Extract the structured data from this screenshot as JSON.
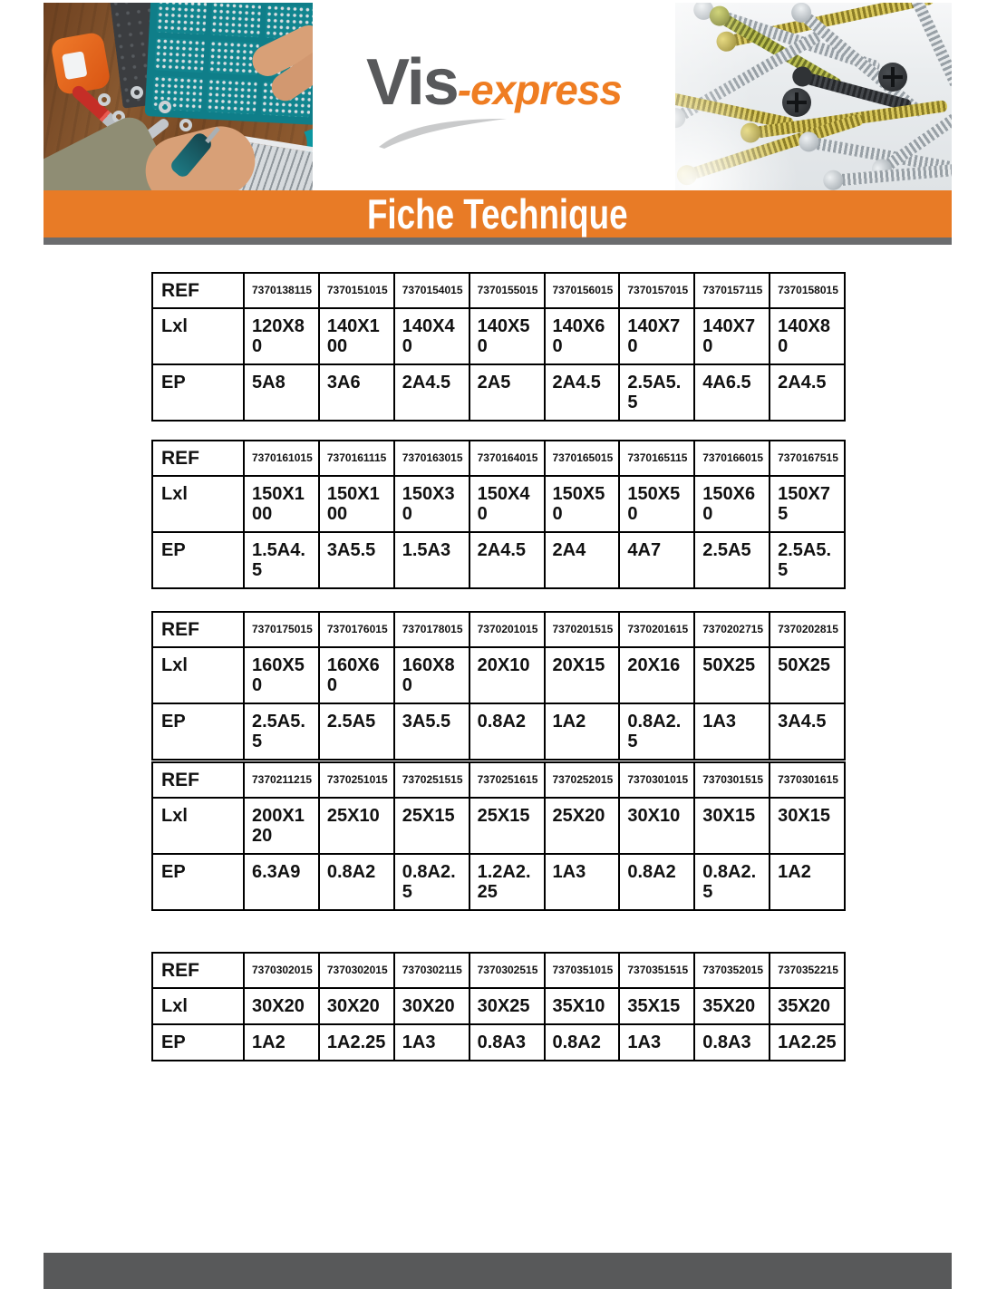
{
  "logo": {
    "part1": "Vis",
    "part2": "-express"
  },
  "banner": {
    "title": "Fiche Technique"
  },
  "row_labels": {
    "ref": "REF",
    "lxl": "Lxl",
    "ep": "EP"
  },
  "tables": [
    {
      "columns": [
        {
          "ref": "7370138115",
          "lxl": "120X80",
          "ep": "5A8"
        },
        {
          "ref": "7370151015",
          "lxl": "140X100",
          "ep": "3A6"
        },
        {
          "ref": "7370154015",
          "lxl": "140X40",
          "ep": "2A4.5"
        },
        {
          "ref": "7370155015",
          "lxl": "140X50",
          "ep": "2A5"
        },
        {
          "ref": "7370156015",
          "lxl": "140X60",
          "ep": "2A4.5"
        },
        {
          "ref": "7370157015",
          "lxl": "140X70",
          "ep": "2.5A5.5"
        },
        {
          "ref": "7370157115",
          "lxl": "140X70",
          "ep": "4A6.5"
        },
        {
          "ref": "7370158015",
          "lxl": "140X80",
          "ep": "2A4.5"
        }
      ]
    },
    {
      "columns": [
        {
          "ref": "7370161015",
          "lxl": "150X100",
          "ep": "1.5A4.5"
        },
        {
          "ref": "7370161115",
          "lxl": "150X100",
          "ep": "3A5.5"
        },
        {
          "ref": "7370163015",
          "lxl": "150X30",
          "ep": "1.5A3"
        },
        {
          "ref": "7370164015",
          "lxl": "150X40",
          "ep": "2A4.5"
        },
        {
          "ref": "7370165015",
          "lxl": "150X50",
          "ep": "2A4"
        },
        {
          "ref": "7370165115",
          "lxl": "150X50",
          "ep": "4A7"
        },
        {
          "ref": "7370166015",
          "lxl": "150X60",
          "ep": "2.5A5"
        },
        {
          "ref": "7370167515",
          "lxl": "150X75",
          "ep": "2.5A5.5"
        }
      ]
    },
    {
      "columns": [
        {
          "ref": "7370175015",
          "lxl": "160X50",
          "ep": "2.5A5.5"
        },
        {
          "ref": "7370176015",
          "lxl": "160X60",
          "ep": "2.5A5"
        },
        {
          "ref": "7370178015",
          "lxl": "160X80",
          "ep": "3A5.5"
        },
        {
          "ref": "7370201015",
          "lxl": "20X10",
          "ep": "0.8A2"
        },
        {
          "ref": "7370201515",
          "lxl": "20X15",
          "ep": "1A2"
        },
        {
          "ref": "7370201615",
          "lxl": "20X16",
          "ep": "0.8A2.5"
        },
        {
          "ref": "7370202715",
          "lxl": "50X25",
          "ep": "1A3"
        },
        {
          "ref": "7370202815",
          "lxl": "50X25",
          "ep": "3A4.5"
        }
      ]
    },
    {
      "columns": [
        {
          "ref": "7370211215",
          "lxl": "200X120",
          "ep": "6.3A9"
        },
        {
          "ref": "7370251015",
          "lxl": "25X10",
          "ep": "0.8A2"
        },
        {
          "ref": "7370251515",
          "lxl": "25X15",
          "ep": "0.8A2.5"
        },
        {
          "ref": "7370251615",
          "lxl": "25X15",
          "ep": "1.2A2.25"
        },
        {
          "ref": "7370252015",
          "lxl": "25X20",
          "ep": "1A3"
        },
        {
          "ref": "7370301015",
          "lxl": "30X10",
          "ep": "0.8A2"
        },
        {
          "ref": "7370301515",
          "lxl": "30X15",
          "ep": "0.8A2.5"
        },
        {
          "ref": "7370301615",
          "lxl": "30X15",
          "ep": "1A2"
        }
      ]
    },
    {
      "columns": [
        {
          "ref": "7370302015",
          "lxl": "30X20",
          "ep": "1A2"
        },
        {
          "ref": "7370302015",
          "lxl": "30X20",
          "ep": "1A2.25"
        },
        {
          "ref": "7370302115",
          "lxl": "30X20",
          "ep": "1A3"
        },
        {
          "ref": "7370302515",
          "lxl": "30X25",
          "ep": "0.8A3"
        },
        {
          "ref": "7370351015",
          "lxl": "35X10",
          "ep": "0.8A2"
        },
        {
          "ref": "7370351515",
          "lxl": "35X15",
          "ep": "1A3"
        },
        {
          "ref": "7370352015",
          "lxl": "35X20",
          "ep": "0.8A3"
        },
        {
          "ref": "7370352215",
          "lxl": "35X20",
          "ep": "1A2.25"
        }
      ]
    }
  ],
  "colors": {
    "banner_orange": "#e87b26",
    "logo_orange": "#ef7d22",
    "logo_gray": "#58595b",
    "swoosh_gray": "#c9cacb",
    "divider_gray": "#6b6c6e",
    "footer_gray": "#58595a",
    "table_border": "#000000"
  }
}
